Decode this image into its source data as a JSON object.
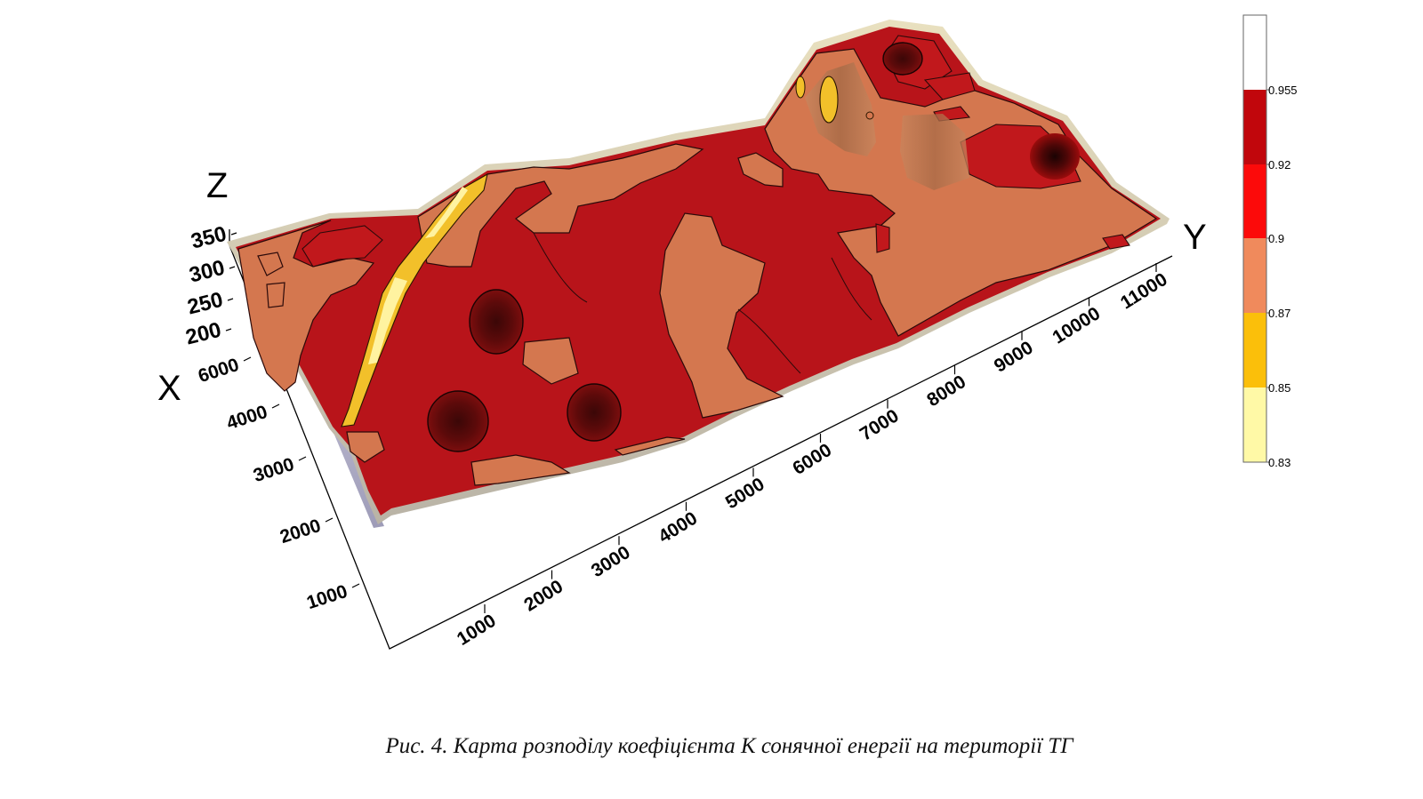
{
  "chart_data": {
    "type": "3d-surface",
    "axes": {
      "x": {
        "label": "X",
        "ticks": [
          "1000",
          "2000",
          "3000",
          "4000",
          "6000"
        ]
      },
      "y": {
        "label": "Y",
        "ticks": [
          "1000",
          "2000",
          "3000",
          "4000",
          "5000",
          "6000",
          "7000",
          "8000",
          "9000",
          "10000",
          "11000"
        ]
      },
      "z": {
        "label": "Z",
        "ticks": [
          "200",
          "250",
          "300",
          "350"
        ]
      }
    },
    "legend": {
      "placement": "right",
      "levels": [
        "0.83",
        "0.85",
        "0.87",
        "0.9",
        "0.92",
        "0.955"
      ],
      "bands": [
        {
          "from": 0.83,
          "to": 0.85,
          "color": "#fff9a6"
        },
        {
          "from": 0.85,
          "to": 0.87,
          "color": "#fbbf0a"
        },
        {
          "from": 0.87,
          "to": 0.9,
          "color": "#f08a5c"
        },
        {
          "from": 0.9,
          "to": 0.92,
          "color": "#fc0a0a"
        },
        {
          "from": 0.92,
          "to": 0.955,
          "color": "#c1060c"
        },
        {
          "from": 0.955,
          "to": null,
          "color": "#ffffff"
        }
      ]
    },
    "surface_colors": {
      "dominant": "#b8141a",
      "light": "#d4774f",
      "dark": "#6f0c0c",
      "yellow": "#f2c02a",
      "rim": "#ddd2a8"
    }
  },
  "caption": "Рис. 4. Карта розподілу коефіцієнта К сонячної енергії на території ТГ"
}
